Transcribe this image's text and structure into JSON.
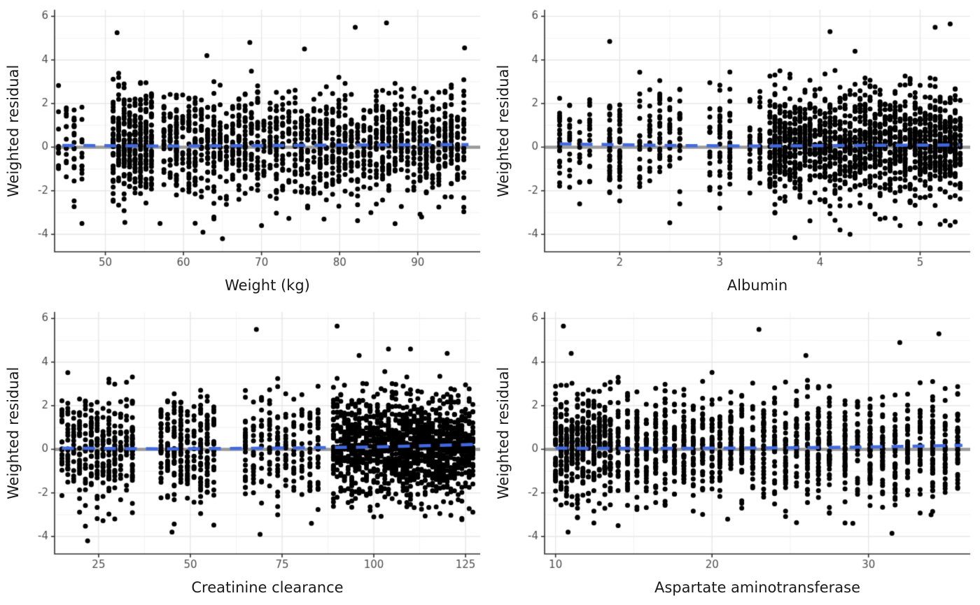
{
  "figure": {
    "colors": {
      "background": "#ffffff",
      "grid_major": "#e7e7e7",
      "grid_minor": "#f3f3f3",
      "axis": "#2f2f2f",
      "tick_text": "#4d4d4d",
      "axis_title": "#1a1a1a",
      "point": "#000000",
      "zero_line": "#999999",
      "smooth_line": "#4169e1"
    }
  },
  "chart_data": [
    {
      "type": "scatter",
      "xlabel": "Weight (kg)",
      "ylabel": "Weighted residual",
      "xlim": [
        43.5,
        98
      ],
      "ylim": [
        -4.8,
        6.3
      ],
      "xticks": [
        50,
        60,
        70,
        80,
        90
      ],
      "yticks": [
        -4,
        -2,
        0,
        2,
        4,
        6
      ],
      "grid": true,
      "legend": "none",
      "reference_line_y": 0,
      "smooth": {
        "style": "dashed",
        "x": [
          44.5,
          57,
          70,
          83,
          96.5
        ],
        "y": [
          0.08,
          0.05,
          0.07,
          0.1,
          0.12
        ]
      },
      "points_model": {
        "seed": 11,
        "y_mean": 0.12,
        "y_sd": 1.22,
        "segments": [
          {
            "x_start": 44,
            "x_end": 47,
            "step": 1,
            "count": 55
          },
          {
            "x_start": 51,
            "x_end": 56.5,
            "step": 0.7,
            "count": 330
          },
          {
            "x_start": 57.5,
            "x_end": 96.5,
            "step": 0.8,
            "count": 1280
          }
        ]
      },
      "outliers": [
        [
          51.5,
          5.25
        ],
        [
          86,
          5.7
        ],
        [
          82,
          5.5
        ],
        [
          68.5,
          4.8
        ],
        [
          75.5,
          4.5
        ],
        [
          96,
          4.55
        ],
        [
          63,
          4.2
        ],
        [
          65,
          -4.2
        ],
        [
          62.5,
          -3.9
        ],
        [
          70,
          -3.6
        ],
        [
          57,
          -3.5
        ],
        [
          52.5,
          -3.45
        ],
        [
          78,
          -3.3
        ],
        [
          90.5,
          -3.2
        ],
        [
          84,
          -3.0
        ]
      ]
    },
    {
      "type": "scatter",
      "xlabel": "Albumin",
      "ylabel": "Weighted residual",
      "xlim": [
        1.25,
        5.5
      ],
      "ylim": [
        -4.8,
        6.3
      ],
      "xticks": [
        2,
        3,
        4,
        5
      ],
      "yticks": [
        -4,
        -2,
        0,
        2,
        4,
        6
      ],
      "grid": true,
      "legend": "none",
      "reference_line_y": 0,
      "smooth": {
        "style": "dashed",
        "x": [
          1.4,
          2.4,
          3.4,
          4.4,
          5.4
        ],
        "y": [
          0.15,
          0.08,
          0.05,
          0.08,
          0.1
        ]
      },
      "points_model": {
        "seed": 23,
        "y_mean": 0.12,
        "y_sd": 1.22,
        "segments": [
          {
            "x_start": 1.4,
            "x_end": 1.7,
            "step": 0.1,
            "count": 70
          },
          {
            "x_start": 1.9,
            "x_end": 2.0,
            "step": 0.1,
            "count": 70
          },
          {
            "x_start": 2.2,
            "x_end": 2.6,
            "step": 0.1,
            "count": 100
          },
          {
            "x_start": 2.9,
            "x_end": 3.1,
            "step": 0.1,
            "count": 70
          },
          {
            "x_start": 3.3,
            "x_end": 3.4,
            "step": 0.1,
            "count": 40
          },
          {
            "x_start": 3.5,
            "x_end": 5.4,
            "step": 0.05,
            "count": 1400
          }
        ]
      },
      "outliers": [
        [
          1.9,
          4.85
        ],
        [
          4.1,
          5.3
        ],
        [
          5.15,
          5.5
        ],
        [
          5.3,
          5.65
        ],
        [
          4.35,
          4.4
        ],
        [
          3.6,
          3.5
        ],
        [
          3.75,
          -4.15
        ],
        [
          4.3,
          -4.0
        ],
        [
          4.2,
          -3.8
        ],
        [
          5.0,
          -3.5
        ],
        [
          4.6,
          -3.3
        ],
        [
          2.6,
          -2.6
        ]
      ]
    },
    {
      "type": "scatter",
      "xlabel": "Creatinine clearance",
      "ylabel": "Weighted residual",
      "xlim": [
        13,
        129
      ],
      "ylim": [
        -4.8,
        6.3
      ],
      "xticks": [
        25,
        50,
        75,
        100,
        125
      ],
      "yticks": [
        -4,
        -2,
        0,
        2,
        4,
        6
      ],
      "grid": true,
      "legend": "none",
      "reference_line_y": 0,
      "smooth": {
        "style": "dashed",
        "x": [
          15,
          43,
          71,
          99,
          127
        ],
        "y": [
          0.05,
          0.02,
          0.05,
          0.1,
          0.22
        ]
      },
      "points_model": {
        "seed": 37,
        "y_mean": 0.1,
        "y_sd": 1.22,
        "segments": [
          {
            "x_start": 15,
            "x_end": 35,
            "step": 1.6,
            "count": 340
          },
          {
            "x_start": 42,
            "x_end": 57,
            "step": 1.8,
            "count": 260
          },
          {
            "x_start": 65,
            "x_end": 85,
            "step": 2.2,
            "count": 230
          },
          {
            "x_start": 89,
            "x_end": 127,
            "step": 1.0,
            "count": 1300
          }
        ]
      },
      "outliers": [
        [
          68,
          5.5
        ],
        [
          90,
          5.65
        ],
        [
          104,
          4.6
        ],
        [
          110,
          4.6
        ],
        [
          96,
          4.3
        ],
        [
          120,
          4.4
        ],
        [
          22,
          -4.2
        ],
        [
          69,
          -3.9
        ],
        [
          45,
          -3.8
        ],
        [
          83,
          -3.4
        ],
        [
          100,
          -3.1
        ],
        [
          118,
          -2.95
        ]
      ]
    },
    {
      "type": "scatter",
      "xlabel": "Aspartate aminotransferase",
      "ylabel": "Weighted residual",
      "xlim": [
        9.3,
        36.5
      ],
      "ylim": [
        -4.8,
        6.3
      ],
      "xticks": [
        10,
        20,
        30
      ],
      "yticks": [
        -4,
        -2,
        0,
        2,
        4,
        6
      ],
      "grid": true,
      "legend": "none",
      "reference_line_y": 0,
      "smooth": {
        "style": "dashed",
        "x": [
          10,
          16.5,
          23,
          29.5,
          36
        ],
        "y": [
          0.05,
          0.04,
          0.06,
          0.1,
          0.18
        ]
      },
      "points_model": {
        "seed": 53,
        "y_mean": 0.12,
        "y_sd": 1.22,
        "segments": [
          {
            "x_start": 10,
            "x_end": 13.5,
            "step": 0.35,
            "count": 430
          },
          {
            "x_start": 14,
            "x_end": 20,
            "step": 0.6,
            "count": 430
          },
          {
            "x_start": 20.5,
            "x_end": 28,
            "step": 0.7,
            "count": 430
          },
          {
            "x_start": 28.5,
            "x_end": 36,
            "step": 0.8,
            "count": 400
          }
        ]
      },
      "outliers": [
        [
          10.5,
          5.65
        ],
        [
          23,
          5.5
        ],
        [
          34.5,
          5.3
        ],
        [
          32,
          4.9
        ],
        [
          11,
          4.4
        ],
        [
          26,
          4.3
        ],
        [
          10.8,
          -3.8
        ],
        [
          31.5,
          -3.85
        ],
        [
          14,
          -3.5
        ],
        [
          29,
          -3.4
        ],
        [
          21,
          -3.2
        ],
        [
          34,
          -3.0
        ]
      ]
    }
  ]
}
